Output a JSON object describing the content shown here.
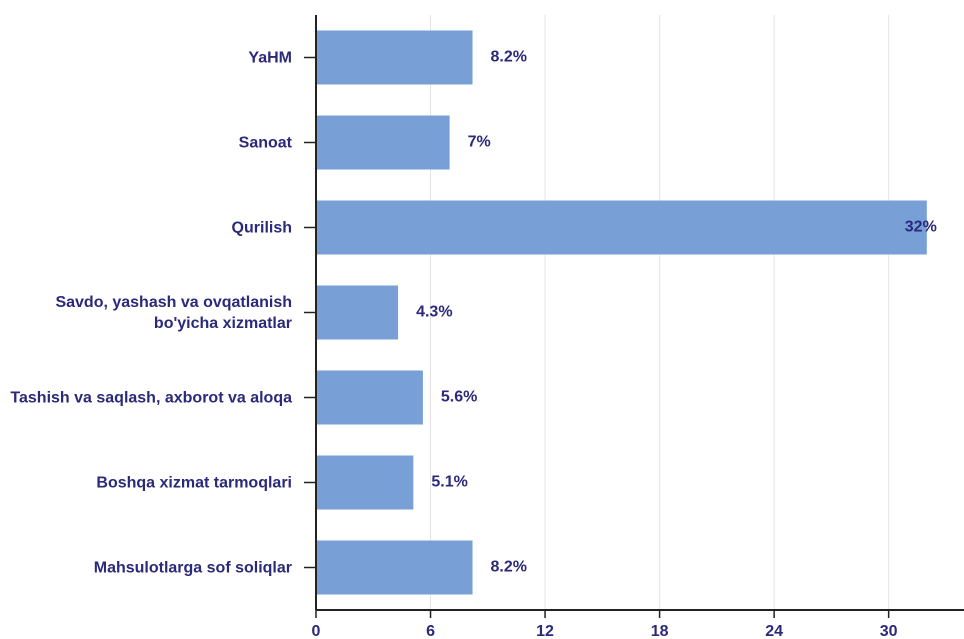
{
  "chart_data": {
    "type": "bar",
    "orientation": "horizontal",
    "categories": [
      "YaHM",
      "Sanoat",
      "Qurilish",
      "Savdo, yashash va ovqatlanish bo'yicha xizmatlar",
      "Tashish va saqlash, axborot va aloqa",
      "Boshqa xizmat tarmoqlari",
      "Mahsulotlarga sof soliqlar"
    ],
    "values": [
      8.2,
      7,
      32,
      4.3,
      5.6,
      5.1,
      8.2
    ],
    "value_labels": [
      "8.2%",
      "7%",
      "32%",
      "4.3%",
      "5.6%",
      "5.1%",
      "8.2%"
    ],
    "color": "#789fd6",
    "xlim": [
      0,
      34
    ],
    "xticks": [
      0,
      6,
      12,
      18,
      24,
      30
    ],
    "grid": true
  }
}
